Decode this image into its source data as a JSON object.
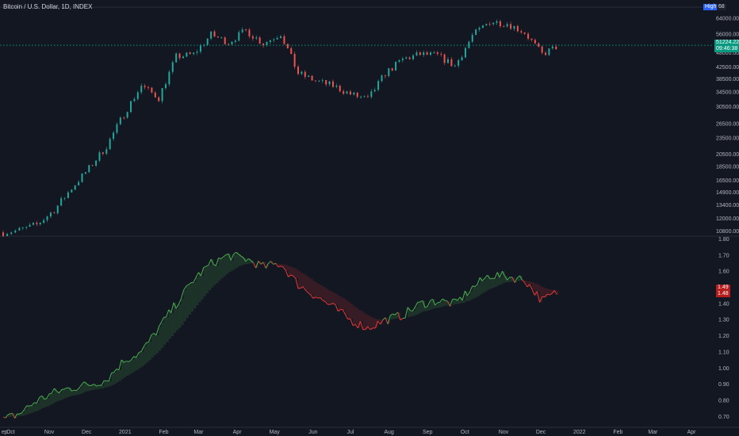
{
  "header": {
    "title": "Bitcoin / U.S. Dollar, 1D, INDEX"
  },
  "badges": {
    "high_label": "High",
    "high_value": "68",
    "price_last": "51224.22",
    "countdown": "09:46:38",
    "ind_1": "1.49",
    "ind_2": "1.48"
  },
  "colors": {
    "background": "#131722",
    "up": "#26a69a",
    "down": "#ef5350",
    "ind_up": "#4caf50",
    "ind_down": "#e53935",
    "last_price": "#089981",
    "grid": "#1e222d",
    "text": "#b2b5be"
  },
  "chart_data": [
    {
      "type": "candlestick",
      "title": "Bitcoin / U.S. Dollar, 1D, INDEX",
      "scale": "log",
      "y_ticks": [
        64000,
        56000,
        48000,
        42500,
        38500,
        34500,
        30500,
        26500,
        23500,
        20500,
        18500,
        16500,
        14900,
        13400,
        12000,
        10800
      ],
      "y_tick_labels": [
        "64000.00",
        "56000.00",
        "48000.00",
        "42500.00",
        "38500.00",
        "34500.00",
        "30500.00",
        "26500.00",
        "23500.00",
        "20500.00",
        "18500.00",
        "16500.00",
        "14900.00",
        "13400.00",
        "12000.00",
        "10800.00"
      ],
      "last_price": 51224.22,
      "x": [
        "2020-09-25",
        "2020-10-08",
        "2020-10-22",
        "2020-11-05",
        "2020-11-19",
        "2020-12-03",
        "2020-12-17",
        "2020-12-31",
        "2021-01-14",
        "2021-01-28",
        "2021-02-11",
        "2021-02-25",
        "2021-03-11",
        "2021-03-25",
        "2021-04-08",
        "2021-04-22",
        "2021-05-06",
        "2021-05-20",
        "2021-06-03",
        "2021-06-17",
        "2021-07-01",
        "2021-07-15",
        "2021-07-29",
        "2021-08-12",
        "2021-08-26",
        "2021-09-09",
        "2021-09-23",
        "2021-10-07",
        "2021-10-21",
        "2021-11-04",
        "2021-11-18",
        "2021-12-02",
        "2021-12-16"
      ],
      "close": [
        10700,
        10900,
        11400,
        12900,
        15500,
        18300,
        22000,
        28800,
        36500,
        33000,
        46500,
        47500,
        56000,
        52500,
        58000,
        52000,
        56500,
        40500,
        38000,
        36500,
        34000,
        32500,
        40500,
        45500,
        47500,
        47000,
        43000,
        55500,
        62500,
        61500,
        57000,
        47500,
        51224
      ]
    },
    {
      "type": "line",
      "scale": "linear",
      "ylim": [
        0.65,
        1.8
      ],
      "y_ticks": [
        1.8,
        1.7,
        1.6,
        1.5,
        1.4,
        1.3,
        1.2,
        1.1,
        1.0,
        0.9,
        0.8,
        0.7
      ],
      "y_tick_labels": [
        "1.80",
        "1.70",
        "1.60",
        "1.50",
        "1.40",
        "1.30",
        "1.20",
        "1.10",
        "1.00",
        "0.90",
        "0.80",
        "0.70"
      ],
      "last_values": [
        1.49,
        1.48
      ],
      "x": [
        "2020-09-25",
        "2020-10-08",
        "2020-10-22",
        "2020-11-05",
        "2020-11-19",
        "2020-12-03",
        "2020-12-17",
        "2020-12-31",
        "2021-01-14",
        "2021-01-28",
        "2021-02-11",
        "2021-02-25",
        "2021-03-11",
        "2021-03-25",
        "2021-04-08",
        "2021-04-22",
        "2021-05-06",
        "2021-05-20",
        "2021-06-03",
        "2021-06-17",
        "2021-07-01",
        "2021-07-15",
        "2021-07-29",
        "2021-08-12",
        "2021-08-26",
        "2021-09-09",
        "2021-09-23",
        "2021-10-07",
        "2021-10-21",
        "2021-11-04",
        "2021-11-18",
        "2021-12-02",
        "2021-12-16"
      ],
      "series": [
        {
          "values": [
            0.68,
            0.72,
            0.8,
            0.85,
            0.88,
            0.9,
            0.93,
            1.05,
            1.1,
            1.25,
            1.4,
            1.55,
            1.65,
            1.7,
            1.68,
            1.63,
            1.65,
            1.52,
            1.45,
            1.38,
            1.3,
            1.25,
            1.3,
            1.33,
            1.4,
            1.42,
            1.4,
            1.5,
            1.58,
            1.57,
            1.55,
            1.42,
            1.48
          ]
        }
      ],
      "x_tick_labels": [
        "ep",
        "Oct",
        "Nov",
        "Dec",
        "2021",
        "Feb",
        "Mar",
        "Apr",
        "May",
        "Jun",
        "Jul",
        "Aug",
        "Sep",
        "Oct",
        "Nov",
        "Dec",
        "2022",
        "Feb",
        "Mar",
        "Apr"
      ]
    }
  ]
}
